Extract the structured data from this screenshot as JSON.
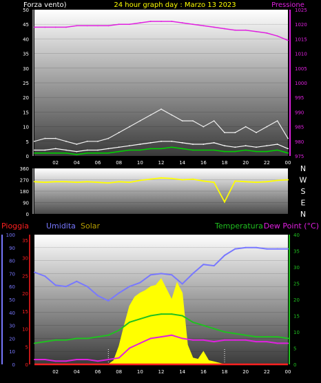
{
  "header": {
    "left_label": "Forza vento)",
    "title": "24 hour graph day : Marzo 13 2023",
    "right_label": "Pressione"
  },
  "colors": {
    "wind_avg": "#ffffff",
    "wind_gust": "#f0f0f0",
    "wind_green": "#00d000",
    "pressure": "#e020e0",
    "direction": "#ffff00",
    "rain": "#ff2020",
    "humidity": "#7878ff",
    "solar": "#ffff00",
    "temperature": "#20c020",
    "dewpoint": "#e020e0",
    "ticks_left": "#ffffff",
    "ticks_pressure": "#e020e0",
    "ticks_rain": "#ff2020",
    "ticks_hum": "#7878ff",
    "ticks_temp": "#20c020"
  },
  "chart_data": [
    {
      "type": "line",
      "name_hint": "wind-pressure",
      "x_ticks": [
        "02",
        "04",
        "06",
        "08",
        "10",
        "12",
        "14",
        "16",
        "18",
        "20",
        "22",
        "00"
      ],
      "y_left_ticks": [
        "0",
        "5",
        "10",
        "15",
        "20",
        "25",
        "30",
        "35",
        "40",
        "45",
        "50"
      ],
      "y_right_ticks": [
        "975",
        "980",
        "985",
        "990",
        "995",
        "1000",
        "1005",
        "1010",
        "1015",
        "1020",
        "1025"
      ],
      "ylim_left": [
        0,
        50
      ],
      "ylim_right": [
        975,
        1025
      ],
      "xlim": [
        0,
        24
      ],
      "series": [
        {
          "key": "pressure",
          "x": [
            0,
            1,
            2,
            3,
            4,
            5,
            6,
            7,
            8,
            9,
            10,
            11,
            12,
            13,
            14,
            15,
            16,
            17,
            18,
            19,
            20,
            21,
            22,
            23,
            24
          ],
          "values": [
            1019,
            1019,
            1019,
            1019,
            1019.5,
            1019.5,
            1019.5,
            1019.5,
            1020,
            1020,
            1020.5,
            1021,
            1021,
            1021,
            1020.5,
            1020,
            1019.5,
            1019,
            1018.5,
            1018,
            1018,
            1017.5,
            1017,
            1016,
            1014.5
          ]
        },
        {
          "key": "wind_gust",
          "x": [
            0,
            1,
            2,
            3,
            4,
            5,
            6,
            7,
            8,
            9,
            10,
            11,
            12,
            13,
            14,
            15,
            16,
            17,
            18,
            19,
            20,
            21,
            22,
            23,
            24
          ],
          "values": [
            5,
            6,
            6,
            5,
            4,
            5,
            5,
            6,
            8,
            10,
            12,
            14,
            16,
            14,
            12,
            12,
            10,
            12,
            8,
            8,
            10,
            8,
            10,
            12,
            6
          ]
        },
        {
          "key": "wind_avg",
          "x": [
            0,
            1,
            2,
            3,
            4,
            5,
            6,
            7,
            8,
            9,
            10,
            11,
            12,
            13,
            14,
            15,
            16,
            17,
            18,
            19,
            20,
            21,
            22,
            23,
            24
          ],
          "values": [
            2,
            2,
            2.5,
            2,
            1.5,
            2,
            2,
            2.5,
            3,
            3.5,
            4,
            4.5,
            5,
            5,
            4.5,
            4,
            4,
            4.5,
            3.5,
            3,
            3.5,
            3,
            3.5,
            4,
            2.5
          ]
        },
        {
          "key": "wind_green",
          "x": [
            0,
            1,
            2,
            3,
            4,
            5,
            6,
            7,
            8,
            9,
            10,
            11,
            12,
            13,
            14,
            15,
            16,
            17,
            18,
            19,
            20,
            21,
            22,
            23,
            24
          ],
          "values": [
            1,
            1,
            1,
            1,
            0.5,
            1,
            1,
            1,
            1.5,
            2,
            2,
            2.5,
            2.5,
            3,
            2.5,
            2,
            2,
            2,
            1.5,
            1.5,
            2,
            1.5,
            1.5,
            2,
            1
          ]
        }
      ]
    },
    {
      "type": "line",
      "name_hint": "wind-direction",
      "x_ticks": [],
      "y_left_ticks": [
        "0",
        "90",
        "180",
        "270",
        "360"
      ],
      "y_right_ticks": [
        "N",
        "E",
        "S",
        "W",
        "N"
      ],
      "ylim": [
        0,
        360
      ],
      "xlim": [
        0,
        24
      ],
      "series": [
        {
          "key": "direction",
          "x": [
            0,
            1,
            2,
            3,
            4,
            5,
            6,
            7,
            8,
            9,
            10,
            11,
            12,
            13,
            14,
            15,
            16,
            17,
            18,
            19,
            20,
            21,
            22,
            23,
            24
          ],
          "values": [
            255,
            250,
            255,
            255,
            250,
            255,
            250,
            245,
            255,
            250,
            265,
            275,
            285,
            280,
            270,
            275,
            260,
            250,
            95,
            260,
            255,
            250,
            255,
            265,
            270
          ]
        }
      ]
    },
    {
      "type": "line",
      "name_hint": "temp-humidity-solar",
      "x_ticks": [
        "02",
        "04",
        "06",
        "08",
        "10",
        "12",
        "14",
        "16",
        "18",
        "20",
        "22",
        "00"
      ],
      "y_rain_ticks": [
        "0",
        "5",
        "10",
        "15",
        "20",
        "25",
        "30",
        "35"
      ],
      "y_hum_ticks": [
        "0",
        "10",
        "20",
        "30",
        "40",
        "50",
        "60",
        "70",
        "80",
        "90",
        "100"
      ],
      "y_temp_ticks": [
        "0",
        "5",
        "10",
        "15",
        "20",
        "25",
        "30",
        "35",
        "40"
      ],
      "ylim_hum": [
        0,
        100
      ],
      "ylim_temp": [
        0,
        40
      ],
      "xlim": [
        0,
        24
      ],
      "series": [
        {
          "key": "humidity",
          "x": [
            0,
            1,
            2,
            3,
            4,
            5,
            6,
            7,
            8,
            9,
            10,
            11,
            12,
            13,
            14,
            15,
            16,
            17,
            18,
            19,
            20,
            21,
            22,
            23,
            24
          ],
          "values": [
            71,
            68,
            61,
            60,
            64,
            60,
            53,
            49,
            55,
            60,
            63,
            69,
            70,
            69,
            62,
            70,
            77,
            76,
            84,
            89,
            90,
            90,
            89,
            89,
            89
          ]
        },
        {
          "key": "temperature",
          "x": [
            0,
            1,
            2,
            3,
            4,
            5,
            6,
            7,
            8,
            9,
            10,
            11,
            12,
            13,
            14,
            15,
            16,
            17,
            18,
            19,
            20,
            21,
            22,
            23,
            24
          ],
          "values": [
            6.5,
            7,
            7.5,
            7.5,
            8,
            8,
            8.5,
            9,
            10.5,
            13,
            14,
            15,
            15.5,
            15.5,
            15,
            13,
            12,
            11,
            10,
            9.5,
            9,
            8.5,
            8.5,
            8.5,
            8
          ]
        },
        {
          "key": "dewpoint",
          "x": [
            0,
            1,
            2,
            3,
            4,
            5,
            6,
            7,
            8,
            9,
            10,
            11,
            12,
            13,
            14,
            15,
            16,
            17,
            18,
            19,
            20,
            21,
            22,
            23,
            24
          ],
          "values": [
            1.5,
            1.5,
            1,
            1,
            1.5,
            1.5,
            1,
            1.5,
            2,
            5,
            6.5,
            8,
            8.5,
            9,
            8,
            7.5,
            7.5,
            7,
            7.5,
            7.5,
            7.5,
            7,
            7,
            6.5,
            6.5
          ]
        },
        {
          "key": "solar",
          "x": [
            0,
            6,
            7,
            7.5,
            8,
            8.5,
            9,
            9.5,
            10,
            10.5,
            11,
            11.5,
            12,
            12.5,
            13,
            13.5,
            14,
            14.5,
            15,
            15.5,
            16,
            16.5,
            17,
            18,
            24
          ],
          "values": [
            0,
            0,
            0,
            3,
            14,
            30,
            45,
            52,
            55,
            57,
            60,
            61,
            66,
            58,
            50,
            63,
            55,
            15,
            5,
            4,
            10,
            3,
            2,
            0,
            0
          ]
        },
        {
          "key": "rain",
          "x": [
            0,
            24
          ],
          "values": [
            0,
            0
          ]
        }
      ]
    }
  ],
  "panel2_labels": {
    "n1": "N",
    "w": "W",
    "s": "S",
    "e": "E",
    "n2": "N"
  },
  "legend": {
    "rain": "Pioggia",
    "humidity": "Umidita",
    "solar": "Solar",
    "temperature": "Temperatura",
    "dewpoint": "Dew Point (°C)"
  }
}
